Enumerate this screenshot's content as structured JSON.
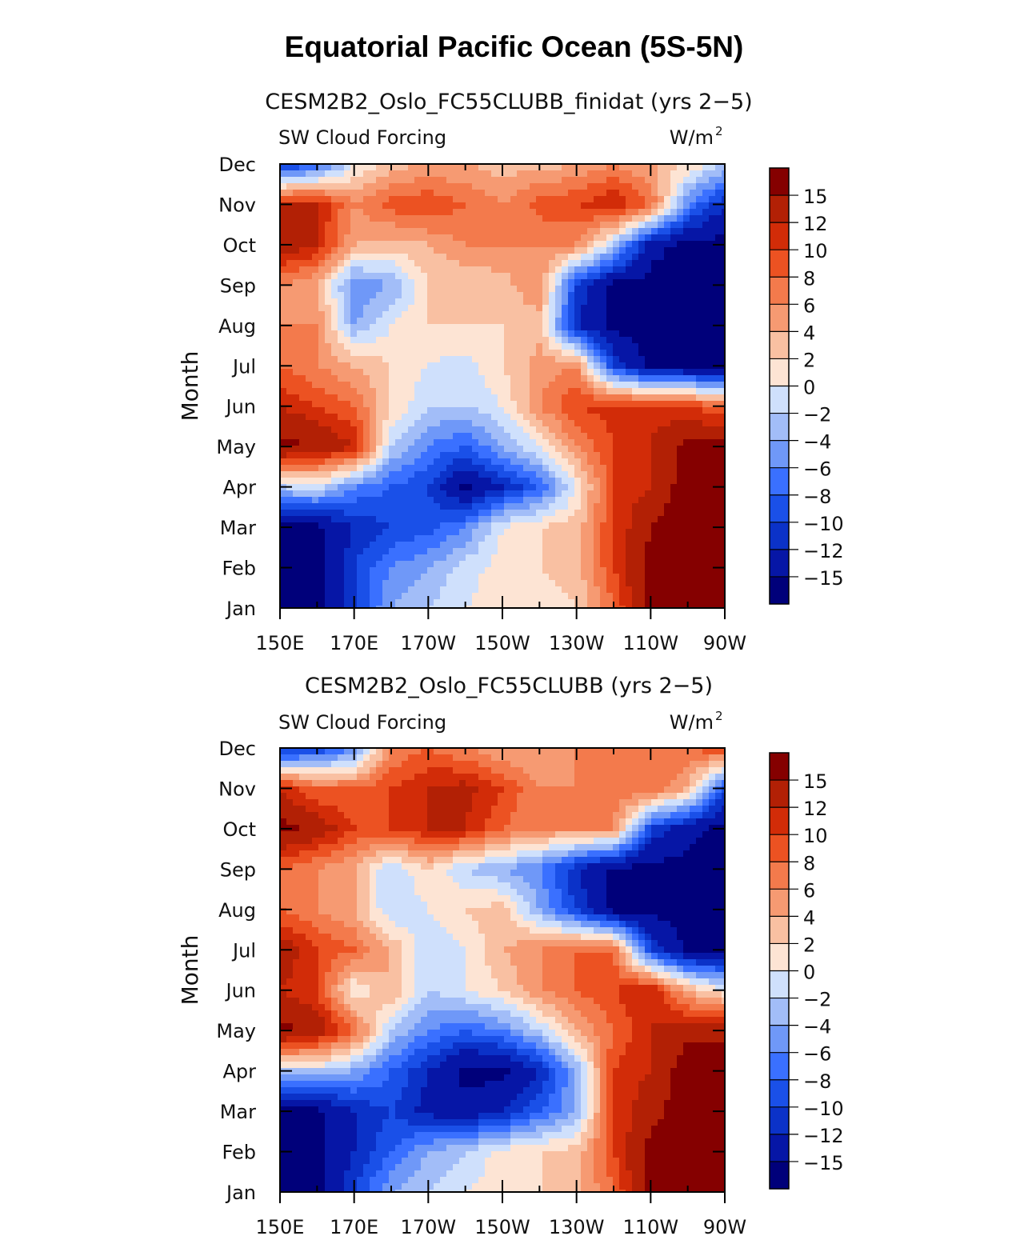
{
  "title": "Equatorial Pacific Ocean (5S-5N)",
  "chart_data": [
    {
      "type": "heatmap",
      "title": "CESM2B2_Oslo_FC55CLUBB_finidat (yrs 2−5)",
      "left_label": "SW Cloud Forcing",
      "right_label": "W/m",
      "right_label_sup": "2",
      "xlabel": "",
      "ylabel": "Month",
      "x_ticks": [
        "150E",
        "170E",
        "170W",
        "150W",
        "130W",
        "110W",
        "90W"
      ],
      "y_ticks": [
        "Jan",
        "Feb",
        "Mar",
        "Apr",
        "May",
        "Jun",
        "Jul",
        "Aug",
        "Sep",
        "Oct",
        "Nov",
        "Dec"
      ],
      "x_lon": [
        150,
        160,
        170,
        180,
        190,
        200,
        210,
        220,
        230,
        240,
        250,
        260,
        270
      ],
      "months": [
        "Jan",
        "Feb",
        "Mar",
        "Apr",
        "May",
        "Jun",
        "Jul",
        "Aug",
        "Sep",
        "Oct",
        "Nov",
        "Dec"
      ],
      "z": [
        [
          -16,
          -16,
          -10,
          -4,
          -2,
          0,
          1,
          1,
          2,
          8,
          16,
          17,
          17
        ],
        [
          -16,
          -16,
          -10,
          -6,
          -4,
          -1,
          1,
          2,
          3,
          10,
          16,
          17,
          17
        ],
        [
          -16,
          -16,
          -12,
          -10,
          -9,
          -6,
          0,
          2,
          3,
          10,
          15,
          17,
          17
        ],
        [
          -2,
          -1,
          -6,
          -8,
          -10,
          -16,
          -12,
          -8,
          0,
          10,
          12,
          17,
          17
        ],
        [
          16,
          15,
          12,
          -2,
          -6,
          -8,
          -4,
          0,
          6,
          10,
          12,
          16,
          16
        ],
        [
          12,
          10,
          8,
          2,
          -2,
          -2,
          0,
          6,
          10,
          11,
          11,
          10,
          8
        ],
        [
          8,
          6,
          4,
          2,
          0,
          -1,
          2,
          5,
          6,
          -10,
          -16,
          -16,
          -16
        ],
        [
          6,
          6,
          -4,
          0,
          2,
          2,
          2,
          3,
          -12,
          -16,
          -16,
          -16,
          -16
        ],
        [
          6,
          4,
          -6,
          -4,
          2,
          2,
          3,
          6,
          -10,
          -16,
          -16,
          -16,
          -16
        ],
        [
          14,
          12,
          4,
          3,
          4,
          6,
          6,
          6,
          6,
          -2,
          -14,
          -16,
          -16
        ],
        [
          13,
          12,
          6,
          9,
          10,
          8,
          6,
          9,
          10,
          12,
          8,
          -6,
          -12
        ],
        [
          -12,
          -8,
          0,
          3,
          4,
          4,
          3,
          3,
          4,
          6,
          4,
          2,
          -2
        ]
      ]
    },
    {
      "type": "heatmap",
      "title": "CESM2B2_Oslo_FC55CLUBB (yrs 2−5)",
      "left_label": "SW Cloud Forcing",
      "right_label": "W/m",
      "right_label_sup": "2",
      "xlabel": "",
      "ylabel": "Month",
      "x_ticks": [
        "150E",
        "170E",
        "170W",
        "150W",
        "130W",
        "110W",
        "90W"
      ],
      "y_ticks": [
        "Jan",
        "Feb",
        "Mar",
        "Apr",
        "May",
        "Jun",
        "Jul",
        "Aug",
        "Sep",
        "Oct",
        "Nov",
        "Dec"
      ],
      "x_lon": [
        150,
        160,
        170,
        180,
        190,
        200,
        210,
        220,
        230,
        240,
        250,
        260,
        270
      ],
      "months": [
        "Jan",
        "Feb",
        "Mar",
        "Apr",
        "May",
        "Jun",
        "Jul",
        "Aug",
        "Sep",
        "Oct",
        "Nov",
        "Dec"
      ],
      "z": [
        [
          -16,
          -16,
          -10,
          -4,
          -2,
          0,
          1,
          2,
          3,
          8,
          16,
          17,
          17
        ],
        [
          -16,
          -16,
          -12,
          -8,
          -4,
          -2,
          1,
          2,
          3,
          10,
          16,
          17,
          17
        ],
        [
          -16,
          -16,
          -12,
          -10,
          -13,
          -14,
          -12,
          -8,
          -4,
          10,
          14,
          17,
          17
        ],
        [
          -2,
          -2,
          -4,
          -8,
          -12,
          -16,
          -16,
          -12,
          -4,
          10,
          12,
          17,
          17
        ],
        [
          16,
          14,
          8,
          -2,
          -6,
          -8,
          -6,
          -2,
          4,
          8,
          12,
          14,
          14
        ],
        [
          12,
          10,
          0,
          4,
          -2,
          0,
          2,
          6,
          8,
          10,
          12,
          4,
          0
        ],
        [
          14,
          10,
          8,
          4,
          -2,
          0,
          4,
          6,
          8,
          8,
          -10,
          -16,
          -16
        ],
        [
          8,
          6,
          4,
          -2,
          0,
          2,
          3,
          -4,
          -10,
          -16,
          -16,
          -16,
          -16
        ],
        [
          8,
          6,
          4,
          -2,
          2,
          -2,
          -4,
          -6,
          -12,
          -16,
          -16,
          -16,
          -16
        ],
        [
          16,
          14,
          10,
          10,
          12,
          12,
          8,
          6,
          6,
          6,
          -10,
          -14,
          -16
        ],
        [
          12,
          8,
          8,
          10,
          12,
          13,
          10,
          6,
          6,
          8,
          8,
          4,
          -10
        ],
        [
          -12,
          -10,
          -6,
          6,
          8,
          6,
          4,
          4,
          6,
          6,
          6,
          8,
          10
        ]
      ]
    }
  ],
  "colorbar": {
    "levels": [
      -15,
      -12,
      -10,
      -8,
      -6,
      -4,
      -2,
      0,
      2,
      4,
      6,
      8,
      10,
      12,
      15
    ],
    "labels": [
      "15",
      "12",
      "10",
      "8",
      "6",
      "4",
      "2",
      "0",
      "−2",
      "−4",
      "−6",
      "−8",
      "−10",
      "−12",
      "−15"
    ],
    "colors": [
      "#00007a",
      "#0616a6",
      "#0b32c8",
      "#1a50e8",
      "#3a70ff",
      "#6f98f8",
      "#a2bdf8",
      "#cfe0fc",
      "#fde4d4",
      "#f9c0a2",
      "#f69a72",
      "#f37a4c",
      "#ec5222",
      "#d22c08",
      "#b22005",
      "#850000"
    ]
  }
}
